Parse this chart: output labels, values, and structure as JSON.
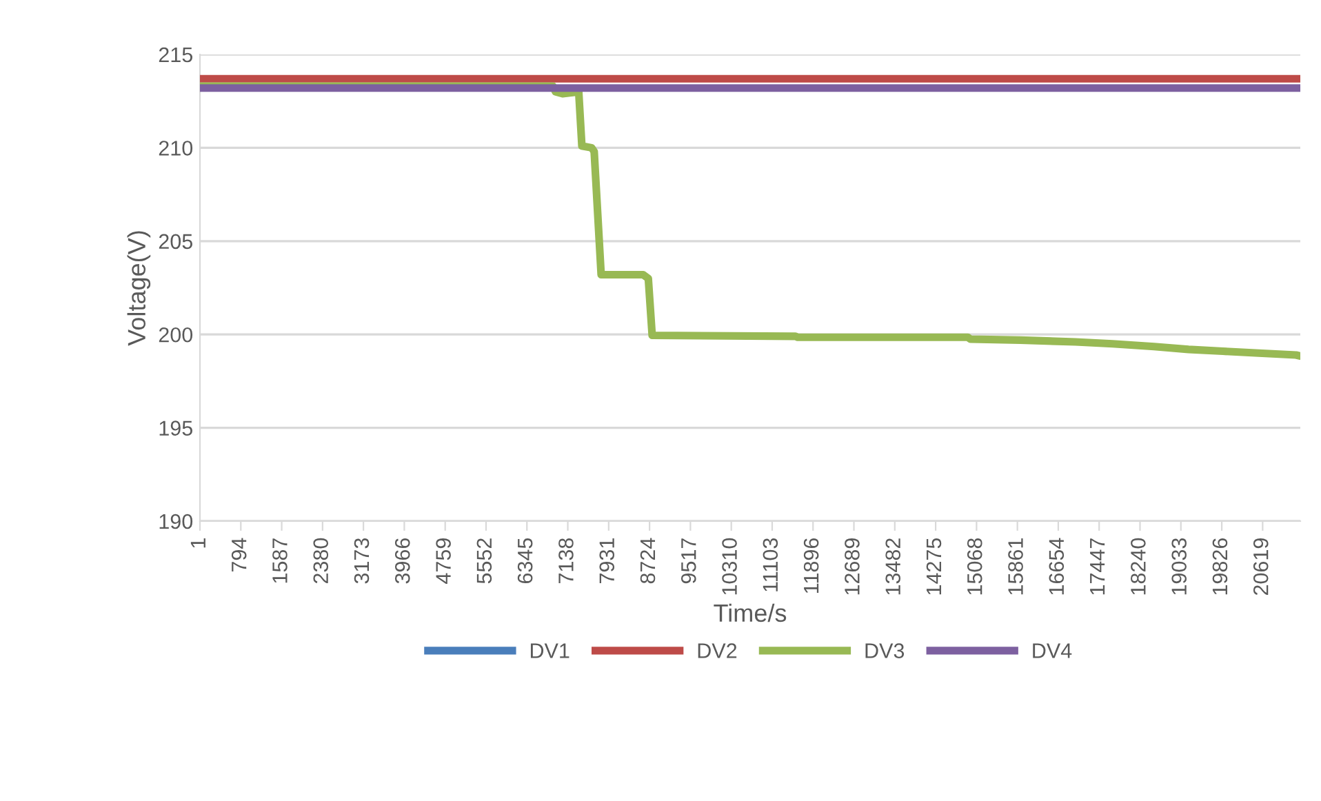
{
  "chart_data": {
    "type": "line",
    "xlabel": "Time/s",
    "ylabel": "Voltage(V)",
    "xlim": [
      1,
      21350
    ],
    "xticks": [
      1,
      794,
      1587,
      2380,
      3173,
      3966,
      4759,
      5552,
      6345,
      7138,
      7931,
      8724,
      9517,
      10310,
      11103,
      11896,
      12689,
      13482,
      14275,
      15068,
      15861,
      16654,
      17447,
      18240,
      19033,
      19826,
      20619
    ],
    "ylim": [
      190,
      215
    ],
    "yticks": [
      190,
      195,
      200,
      205,
      210,
      215
    ],
    "grid": "y",
    "legend": "bottom",
    "marker": "none",
    "line_style": "solid",
    "series": [
      {
        "name": "DV1",
        "color": "#4a7ebb",
        "values": [
          null,
          null
        ]
      },
      {
        "name": "DV2",
        "color": "#be4b48",
        "x": [
          1,
          21340
        ],
        "values": [
          213.7,
          213.7
        ]
      },
      {
        "name": "DV3",
        "color": "#98b954",
        "x": [
          1,
          6850,
          6900,
          7036,
          7350,
          7411,
          7600,
          7650,
          7785,
          8600,
          8700,
          8775,
          11557,
          11600,
          14900,
          14950,
          15918,
          16987,
          17709,
          18512,
          19181,
          19850,
          20545,
          21267,
          21340
        ],
        "values": [
          213.3,
          213.3,
          213.0,
          212.9,
          213.0,
          210.1,
          210.0,
          209.8,
          203.2,
          203.2,
          203.0,
          199.95,
          199.9,
          199.85,
          199.85,
          199.75,
          199.7,
          199.6,
          199.5,
          199.35,
          199.2,
          199.1,
          199.0,
          198.9,
          198.85
        ]
      },
      {
        "name": "DV4",
        "color": "#7d60a0",
        "x": [
          1,
          21340
        ],
        "values": [
          213.2,
          213.2
        ]
      }
    ]
  }
}
